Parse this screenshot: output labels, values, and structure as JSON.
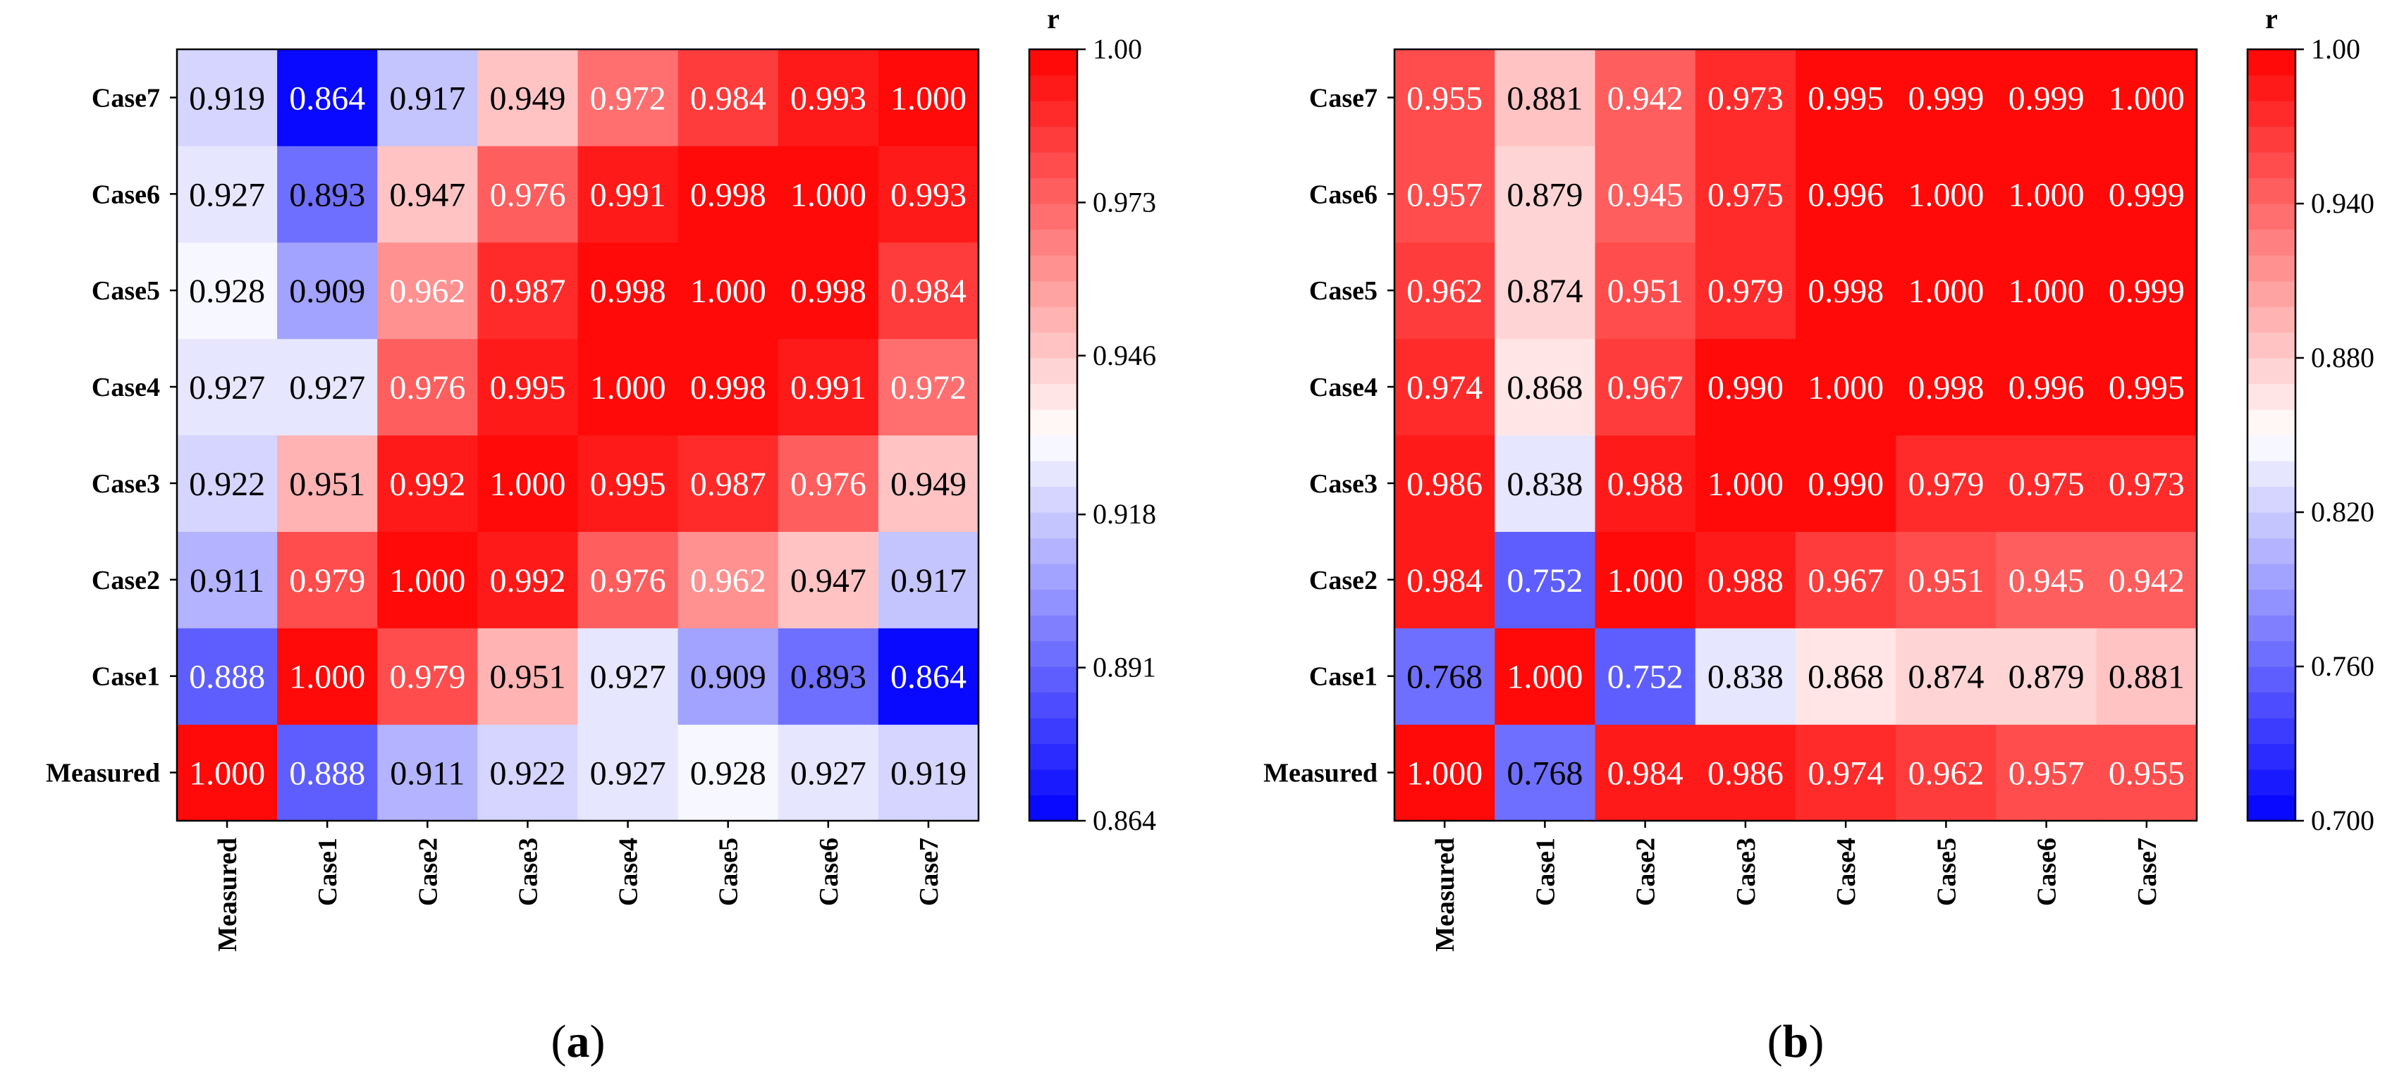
{
  "chart_data": [
    {
      "type": "heatmap",
      "panel_label": "(a)",
      "panel_letter": "a",
      "colorbar_title": "r",
      "colorbar_ticks": [
        "1.00",
        "0.973",
        "0.946",
        "0.918",
        "0.891",
        "0.864"
      ],
      "colorbar_tick_values": [
        1.0,
        0.973,
        0.946,
        0.918,
        0.891,
        0.864
      ],
      "value_range": [
        0.864,
        1.0
      ],
      "x_labels": [
        "Measured",
        "Case1",
        "Case2",
        "Case3",
        "Case4",
        "Case5",
        "Case6",
        "Case7"
      ],
      "y_labels": [
        "Measured",
        "Case1",
        "Case2",
        "Case3",
        "Case4",
        "Case5",
        "Case6",
        "Case7"
      ],
      "values": [
        [
          "1.000",
          "0.888",
          "0.911",
          "0.922",
          "0.927",
          "0.928",
          "0.927",
          "0.919"
        ],
        [
          "0.888",
          "1.000",
          "0.979",
          "0.951",
          "0.927",
          "0.909",
          "0.893",
          "0.864"
        ],
        [
          "0.911",
          "0.979",
          "1.000",
          "0.992",
          "0.976",
          "0.962",
          "0.947",
          "0.917"
        ],
        [
          "0.922",
          "0.951",
          "0.992",
          "1.000",
          "0.995",
          "0.987",
          "0.976",
          "0.949"
        ],
        [
          "0.927",
          "0.927",
          "0.976",
          "0.995",
          "1.000",
          "0.998",
          "0.991",
          "0.972"
        ],
        [
          "0.928",
          "0.909",
          "0.962",
          "0.987",
          "0.998",
          "1.000",
          "0.998",
          "0.984"
        ],
        [
          "0.927",
          "0.893",
          "0.947",
          "0.976",
          "0.991",
          "0.998",
          "1.000",
          "0.993"
        ],
        [
          "0.919",
          "0.864",
          "0.917",
          "0.949",
          "0.972",
          "0.984",
          "0.993",
          "1.000"
        ]
      ]
    },
    {
      "type": "heatmap",
      "panel_label": "(b)",
      "panel_letter": "b",
      "colorbar_title": "r",
      "colorbar_ticks": [
        "1.00",
        "0.940",
        "0.880",
        "0.820",
        "0.760",
        "0.700"
      ],
      "colorbar_tick_values": [
        1.0,
        0.94,
        0.88,
        0.82,
        0.76,
        0.7
      ],
      "value_range": [
        0.7,
        1.0
      ],
      "x_labels": [
        "Measured",
        "Case1",
        "Case2",
        "Case3",
        "Case4",
        "Case5",
        "Case6",
        "Case7"
      ],
      "y_labels": [
        "Measured",
        "Case1",
        "Case2",
        "Case3",
        "Case4",
        "Case5",
        "Case6",
        "Case7"
      ],
      "values": [
        [
          "1.000",
          "0.768",
          "0.984",
          "0.986",
          "0.974",
          "0.962",
          "0.957",
          "0.955"
        ],
        [
          "0.768",
          "1.000",
          "0.752",
          "0.838",
          "0.868",
          "0.874",
          "0.879",
          "0.881"
        ],
        [
          "0.984",
          "0.752",
          "1.000",
          "0.988",
          "0.967",
          "0.951",
          "0.945",
          "0.942"
        ],
        [
          "0.986",
          "0.838",
          "0.988",
          "1.000",
          "0.990",
          "0.979",
          "0.975",
          "0.973"
        ],
        [
          "0.974",
          "0.868",
          "0.967",
          "0.990",
          "1.000",
          "0.998",
          "0.996",
          "0.995"
        ],
        [
          "0.962",
          "0.874",
          "0.951",
          "0.979",
          "0.998",
          "1.000",
          "1.000",
          "0.999"
        ],
        [
          "0.957",
          "0.879",
          "0.945",
          "0.975",
          "0.996",
          "1.000",
          "1.000",
          "0.999"
        ],
        [
          "0.955",
          "0.881",
          "0.942",
          "0.973",
          "0.995",
          "0.999",
          "0.999",
          "1.000"
        ]
      ]
    }
  ]
}
